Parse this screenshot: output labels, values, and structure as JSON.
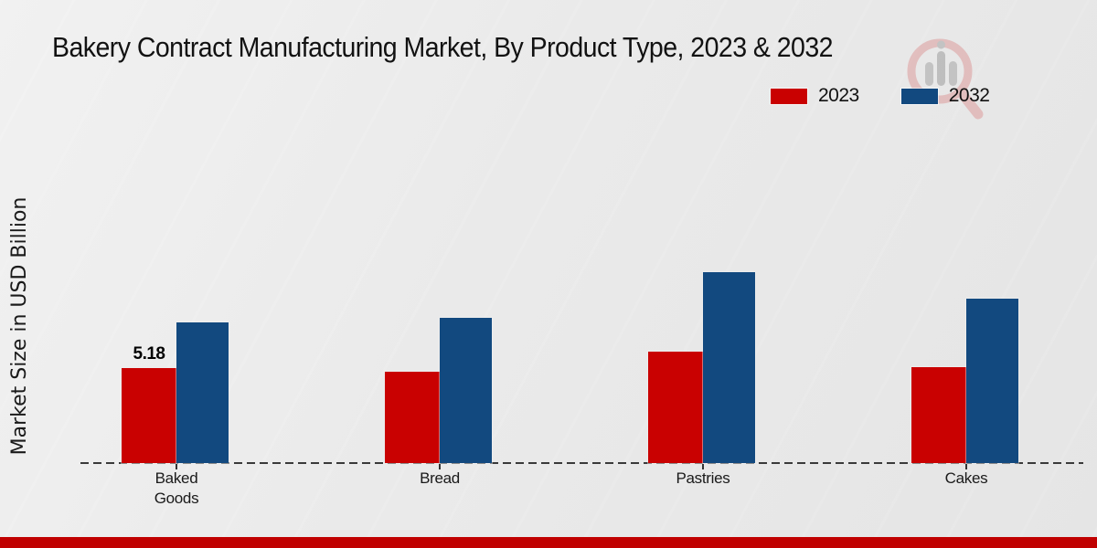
{
  "header": {
    "title": "Bakery Contract Manufacturing Market, By Product Type, 2023 & 2032"
  },
  "legend": {
    "items": [
      {
        "label": "2023",
        "color": "#c90101"
      },
      {
        "label": "2032",
        "color": "#12497f"
      }
    ]
  },
  "chart_data": {
    "type": "bar",
    "title": "Bakery Contract Manufacturing Market, By Product Type, 2023 & 2032",
    "categories": [
      "Baked Goods",
      "Bread",
      "Pastries",
      "Cakes"
    ],
    "series": [
      {
        "name": "2023",
        "color": "#c90101",
        "values": [
          5.18,
          4.98,
          6.08,
          5.23
        ]
      },
      {
        "name": "2032",
        "color": "#12497f",
        "values": [
          7.67,
          7.92,
          10.41,
          8.97
        ]
      }
    ],
    "data_labels": [
      {
        "series": "2023",
        "category": "Baked Goods",
        "text": "5.18"
      }
    ],
    "xlabel": "",
    "ylabel": "Market Size in USD Billion",
    "ylim": [
      0,
      12
    ],
    "grid": false,
    "y_axis_ticks_visible": false,
    "baseline_style": "dashed",
    "legend_position": "top-right"
  },
  "watermark": {
    "name": "magnifier-bar-chart-logo"
  },
  "footer": {
    "band_color": "#c00000"
  }
}
